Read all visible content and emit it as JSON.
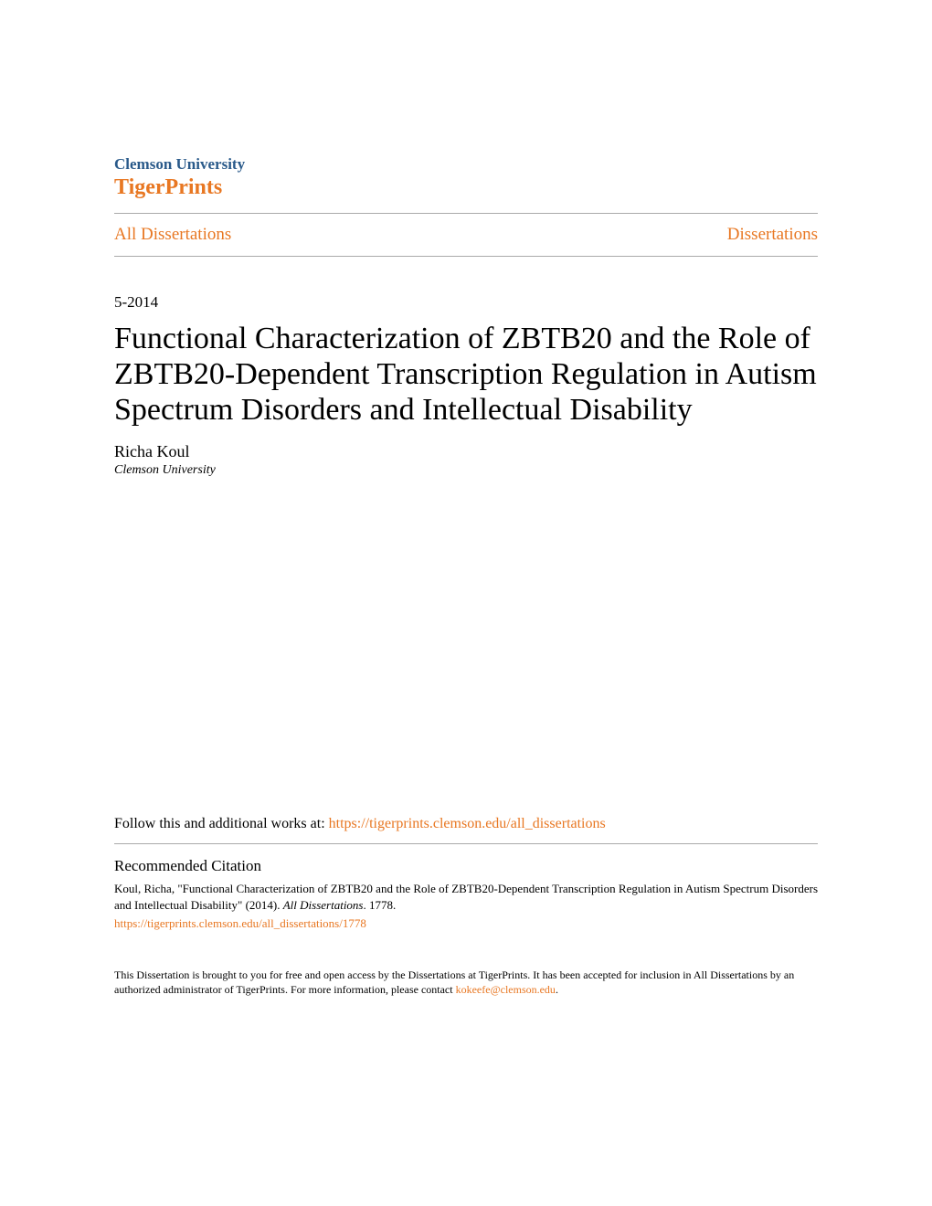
{
  "header": {
    "institution": "Clemson University",
    "brand": "TigerPrints"
  },
  "nav": {
    "left": "All Dissertations",
    "right": "Dissertations"
  },
  "date": "5-2014",
  "title": "Functional Characterization of ZBTB20 and the Role of ZBTB20-Dependent Transcription Regulation in Autism Spectrum Disorders and Intellectual Disability",
  "author": "Richa Koul",
  "affiliation": "Clemson University",
  "follow": {
    "prefix": "Follow this and additional works at: ",
    "url": "https://tigerprints.clemson.edu/all_dissertations"
  },
  "citation": {
    "heading": "Recommended Citation",
    "text_part1": "Koul, Richa, \"Functional Characterization of ZBTB20 and the Role of ZBTB20-Dependent Transcription Regulation in Autism Spectrum Disorders and Intellectual Disability\" (2014). ",
    "text_italic": "All Dissertations",
    "text_part2": ". 1778.",
    "url": "https://tigerprints.clemson.edu/all_dissertations/1778"
  },
  "footer": {
    "text_part1": "This Dissertation is brought to you for free and open access by the Dissertations at TigerPrints. It has been accepted for inclusion in All Dissertations by an authorized administrator of TigerPrints. For more information, please contact ",
    "email": "kokeefe@clemson.edu",
    "text_part2": "."
  },
  "colors": {
    "orange": "#e87722",
    "blue": "#2a5a8a",
    "divider": "#aaaaaa",
    "text": "#000000",
    "background": "#ffffff"
  }
}
